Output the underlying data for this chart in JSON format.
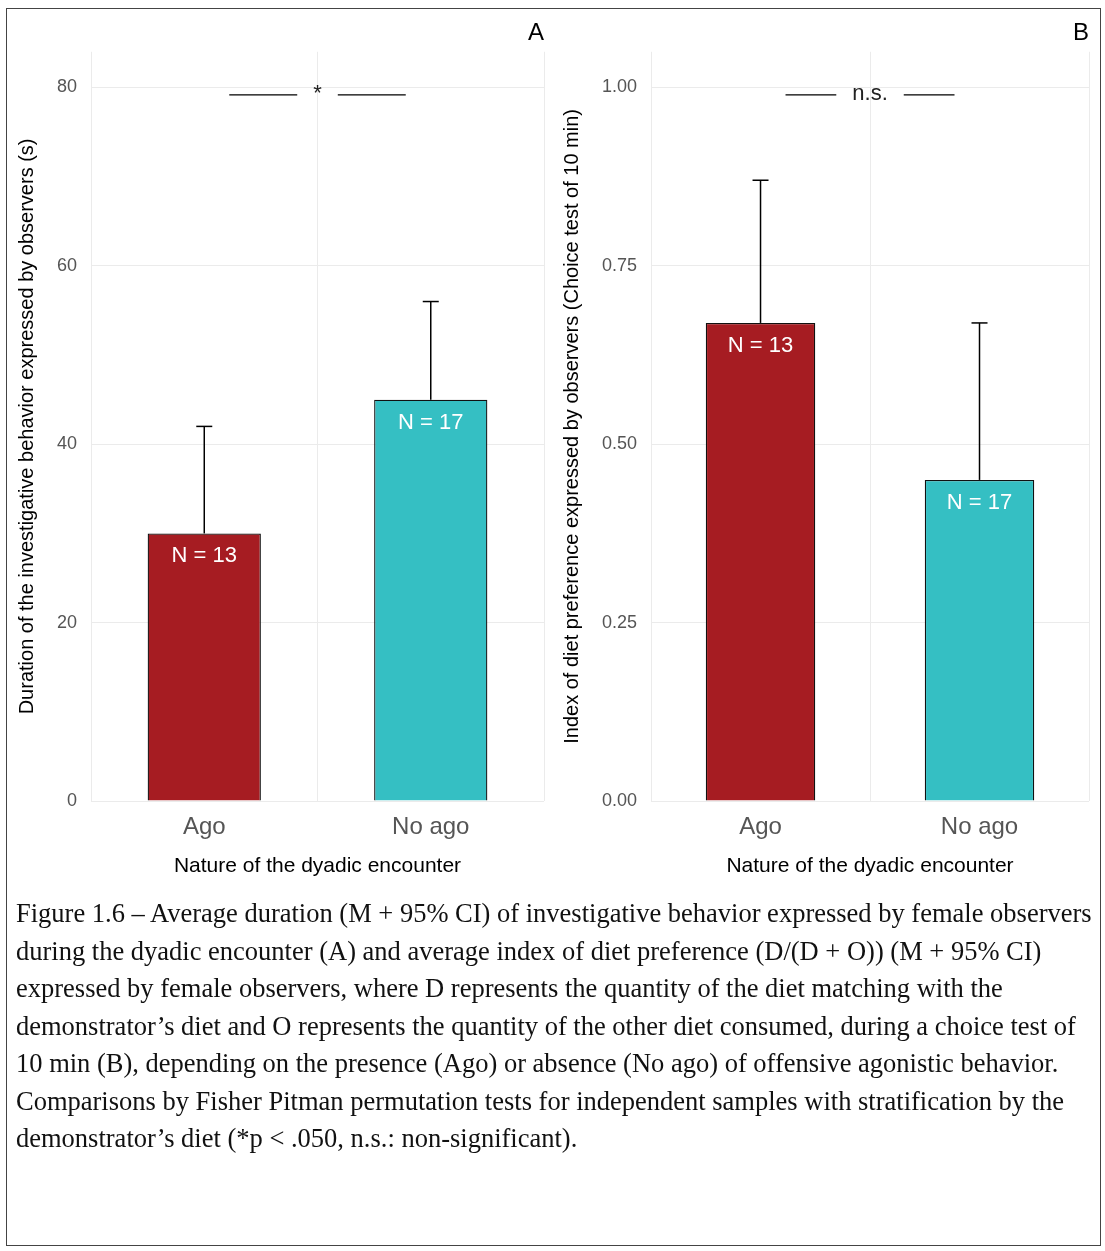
{
  "chart_data": [
    {
      "type": "bar",
      "title": "A",
      "xlabel": "Nature of the dyadic encounter",
      "ylabel": "Duration of the investigative behavior expressed by observers (s)",
      "categories": [
        "Ago",
        "No ago"
      ],
      "values": [
        30,
        45
      ],
      "colors": [
        "#a61c22",
        "#35bfc3"
      ],
      "errors": [
        [
          30,
          42
        ],
        [
          45,
          56
        ]
      ],
      "ylim": [
        0,
        84
      ],
      "yticks": [
        0,
        20,
        40,
        60,
        80
      ],
      "grid": true,
      "legend": false,
      "annotations": [
        "*",
        {
          "text": "N = 13",
          "x": "Ago",
          "y": 30
        },
        {
          "text": "N = 17",
          "x": "No ago",
          "y": 45
        },
        "Figure 1.6 – Average duration (M + 95% CI) of investigative behavior expressed by female observers during the dyadic encounter (A) and average index of diet preference (D/(D + O)) (M + 95% CI) expressed by female observers, where D represents the quantity of the diet matching with the demonstrator’s diet and O represents the quantity of the other diet consumed, during a choice test of 10 min (B), depending on the presence (Ago) or absence (No ago) of offensive agonistic behavior. Comparisons by Fisher Pitman permutation tests for independent samples with stratification by the demonstrator’s diet (*p < .050, n.s.: non-significant)."
      ]
    },
    {
      "type": "bar",
      "title": "B",
      "xlabel": "Nature of the dyadic encounter",
      "ylabel": "Index of diet preference expressed by observers (Choice test of 10 min)",
      "categories": [
        "Ago",
        "No ago"
      ],
      "values": [
        0.67,
        0.45
      ],
      "colors": [
        "#a61c22",
        "#35bfc3"
      ],
      "errors": [
        [
          0.67,
          0.87
        ],
        [
          0.45,
          0.67
        ]
      ],
      "ylim": [
        0,
        1.05
      ],
      "yticks": [
        {
          "value": 0,
          "label": "0.00"
        },
        {
          "value": 0.25,
          "label": "0.25"
        },
        {
          "value": 0.5,
          "label": "0.50"
        },
        {
          "value": 0.75,
          "label": "0.75"
        },
        {
          "value": 1,
          "label": "1.00"
        }
      ],
      "grid": true,
      "legend": false,
      "annotations": [
        "n.s.",
        {
          "text": "N = 13",
          "x": "Ago",
          "y": 0.67
        },
        {
          "text": "N = 17",
          "x": "No ago",
          "y": 0.45
        }
      ]
    }
  ]
}
